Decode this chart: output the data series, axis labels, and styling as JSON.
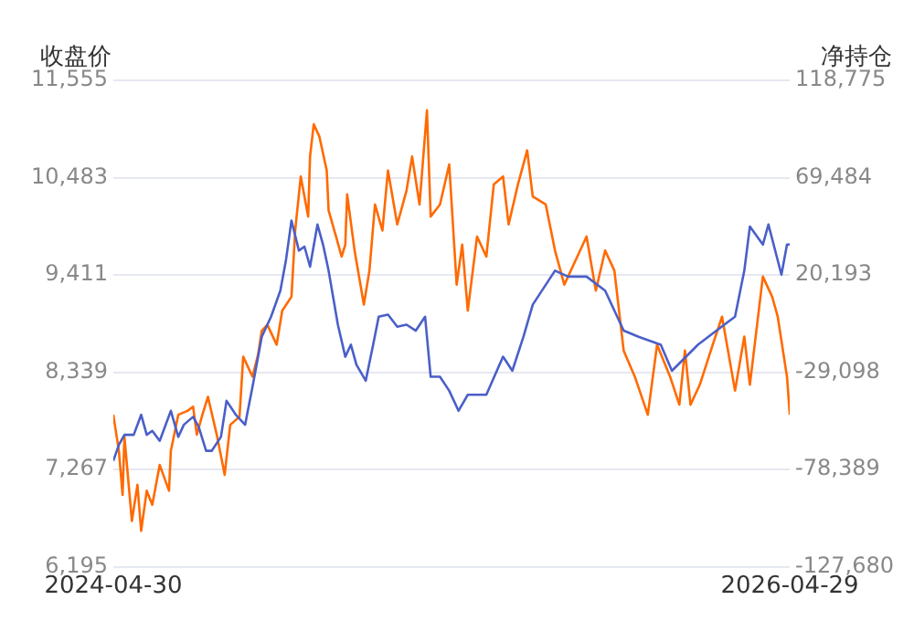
{
  "chart_data": {
    "type": "line",
    "ylabel": "收盘价",
    "y2label": "净持仓",
    "grid": "y",
    "marker": "none",
    "line_style": "solid",
    "xlim": [
      "2024-04-30",
      "2026-04-29"
    ],
    "xticks": [
      {
        "value": "2024-04-30",
        "label": "2024-04-30"
      },
      {
        "value": "2026-04-29",
        "label": "2026-04-29"
      }
    ],
    "ylim": [
      6195,
      11555
    ],
    "yticks": [
      {
        "value": 6195,
        "label": "6,195"
      },
      {
        "value": 7267,
        "label": "7,267"
      },
      {
        "value": 8339,
        "label": "8,339"
      },
      {
        "value": 9411,
        "label": "9,411"
      },
      {
        "value": 10483,
        "label": "10,483"
      },
      {
        "value": 11555,
        "label": "11,555"
      }
    ],
    "y2lim": [
      -127680,
      118775
    ],
    "y2ticks": [
      {
        "value": -127680,
        "label": "-127,680"
      },
      {
        "value": -78389,
        "label": "-78,389"
      },
      {
        "value": -29098,
        "label": "-29,098"
      },
      {
        "value": 20193,
        "label": "20,193"
      },
      {
        "value": 69484,
        "label": "69,484"
      },
      {
        "value": 118775,
        "label": "118,775"
      }
    ],
    "series": [
      {
        "color": "#4a5fc8",
        "x": [
          "2024-04-30",
          "2024-05-06",
          "2024-05-12",
          "2024-05-22",
          "2024-05-30",
          "2024-06-05",
          "2024-06-11",
          "2024-06-19",
          "2024-07-01",
          "2024-07-09",
          "2024-07-15",
          "2024-07-25",
          "2024-07-31",
          "2024-08-08",
          "2024-08-14",
          "2024-08-24",
          "2024-08-30",
          "2024-09-09",
          "2024-09-19",
          "2024-09-27",
          "2024-10-07",
          "2024-10-17",
          "2024-10-27",
          "2024-11-02",
          "2024-11-08",
          "2024-11-16",
          "2024-11-22",
          "2024-11-28",
          "2024-12-06",
          "2024-12-12",
          "2024-12-18",
          "2024-12-28",
          "2025-01-05",
          "2025-01-11",
          "2025-01-17",
          "2025-01-27",
          "2025-02-04",
          "2025-02-10",
          "2025-02-20",
          "2025-03-02",
          "2025-03-12",
          "2025-03-22",
          "2025-04-01",
          "2025-04-07",
          "2025-04-17",
          "2025-04-27",
          "2025-05-07",
          "2025-05-17",
          "2025-06-06",
          "2025-06-24",
          "2025-07-04",
          "2025-07-16",
          "2025-07-26",
          "2025-08-19",
          "2025-09-02",
          "2025-09-22",
          "2025-10-12",
          "2025-11-01",
          "2025-11-17",
          "2025-12-11",
          "2025-12-23",
          "2026-01-20",
          "2026-02-09",
          "2026-03-01",
          "2026-03-11",
          "2026-03-17",
          "2026-03-31",
          "2026-04-06",
          "2026-04-20",
          "2026-04-26",
          "2026-04-29"
        ],
        "values": [
          7364,
          7540,
          7650,
          7650,
          7871,
          7650,
          7694,
          7584,
          7915,
          7628,
          7761,
          7849,
          7739,
          7474,
          7474,
          7628,
          8025,
          7871,
          7761,
          8180,
          8731,
          8952,
          9239,
          9570,
          10011,
          9680,
          9724,
          9503,
          9967,
          9746,
          9459,
          8864,
          8511,
          8643,
          8422,
          8246,
          8643,
          8952,
          8974,
          8842,
          8864,
          8798,
          8952,
          8290,
          8290,
          8136,
          7915,
          8092,
          8092,
          8511,
          8356,
          8731,
          9084,
          9459,
          9393,
          9393,
          9239,
          8798,
          8731,
          8643,
          8356,
          8643,
          8798,
          8952,
          9459,
          9945,
          9746,
          9967,
          9415,
          9746,
          9746
        ]
      },
      {
        "color": "#ff6a00",
        "axis": "y2",
        "x": [
          "2024-04-30",
          "2024-05-06",
          "2024-05-10",
          "2024-05-12",
          "2024-05-20",
          "2024-05-26",
          "2024-05-30",
          "2024-06-05",
          "2024-06-11",
          "2024-06-19",
          "2024-06-29",
          "2024-07-01",
          "2024-07-09",
          "2024-07-19",
          "2024-07-25",
          "2024-07-29",
          "2024-08-04",
          "2024-08-10",
          "2024-08-20",
          "2024-08-28",
          "2024-09-03",
          "2024-09-13",
          "2024-09-17",
          "2024-09-27",
          "2024-10-03",
          "2024-10-07",
          "2024-10-13",
          "2024-10-23",
          "2024-10-29",
          "2024-11-08",
          "2024-11-12",
          "2024-11-18",
          "2024-11-26",
          "2024-11-28",
          "2024-12-02",
          "2024-12-08",
          "2024-12-16",
          "2024-12-18",
          "2024-12-26",
          "2025-01-01",
          "2025-01-05",
          "2025-01-07",
          "2025-01-15",
          "2025-01-25",
          "2025-01-31",
          "2025-02-06",
          "2025-02-14",
          "2025-02-20",
          "2025-03-02",
          "2025-03-12",
          "2025-03-18",
          "2025-03-26",
          "2025-04-03",
          "2025-04-07",
          "2025-04-17",
          "2025-04-27",
          "2025-05-05",
          "2025-05-11",
          "2025-05-17",
          "2025-05-27",
          "2025-06-06",
          "2025-06-14",
          "2025-06-24",
          "2025-06-30",
          "2025-07-10",
          "2025-07-20",
          "2025-07-26",
          "2025-08-09",
          "2025-08-19",
          "2025-08-29",
          "2025-09-12",
          "2025-09-22",
          "2025-10-02",
          "2025-10-12",
          "2025-10-22",
          "2025-11-01",
          "2025-11-13",
          "2025-11-27",
          "2025-12-07",
          "2025-12-21",
          "2025-12-31",
          "2026-01-06",
          "2026-01-12",
          "2026-01-22",
          "2026-02-05",
          "2026-02-15",
          "2026-03-01",
          "2026-03-11",
          "2026-03-17",
          "2026-03-31",
          "2026-04-10",
          "2026-04-16",
          "2026-04-26",
          "2026-04-29"
        ],
        "values": [
          -50600,
          -68900,
          -91200,
          -61800,
          -104400,
          -86100,
          -109400,
          -89100,
          -96200,
          -76000,
          -89100,
          -68900,
          -50600,
          -48600,
          -46500,
          -60700,
          -50600,
          -41500,
          -61800,
          -81000,
          -55700,
          -51600,
          -21200,
          -31300,
          -20200,
          -8000,
          -5000,
          -15100,
          2100,
          9200,
          42700,
          70100,
          49800,
          80200,
          96500,
          90400,
          73100,
          52900,
          39700,
          29500,
          35600,
          61000,
          32600,
          5200,
          22400,
          55900,
          42700,
          73100,
          45800,
          63000,
          80200,
          55900,
          103600,
          49800,
          55900,
          76200,
          15300,
          35600,
          2100,
          39700,
          29500,
          66000,
          70100,
          45800,
          66000,
          83300,
          60000,
          55900,
          32600,
          15300,
          29500,
          39700,
          12300,
          32600,
          22400,
          -18100,
          -31300,
          -50600,
          -15100,
          -31300,
          -45500,
          -18100,
          -45500,
          -35400,
          -15100,
          -900,
          -38400,
          -11000,
          -35400,
          19400,
          9200,
          -900,
          -31300,
          -50600
        ]
      }
    ]
  }
}
